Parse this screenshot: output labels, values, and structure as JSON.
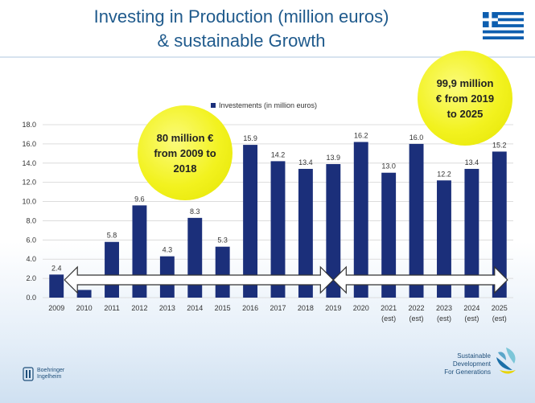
{
  "title": {
    "line1": "Investing in Production (million euros)",
    "line2": "& sustainable Growth"
  },
  "legend": "Investements (in million euros)",
  "bubbles": [
    {
      "lines": [
        "80 million €",
        "from 2009 to",
        "2018"
      ]
    },
    {
      "lines": [
        "99,9 million",
        "€ from 2019",
        "to 2025"
      ]
    }
  ],
  "colors": {
    "bar": "#1b2f7a",
    "bubble": "#f2f21f",
    "title": "#1f5a8c"
  },
  "logos": {
    "bottom_right": [
      "Sustainable",
      "Development",
      "For Generations"
    ],
    "bottom_left": [
      "Boehringer",
      "Ingelheim"
    ]
  },
  "chart_data": {
    "type": "bar",
    "categories": [
      "2009",
      "2010",
      "2011",
      "2012",
      "2013",
      "2014",
      "2015",
      "2016",
      "2017",
      "2018",
      "2019",
      "2020",
      "2021",
      "2022",
      "2023",
      "2024",
      "2025"
    ],
    "sublabels": [
      "",
      "",
      "",
      "",
      "",
      "",
      "",
      "",
      "",
      "",
      "",
      "",
      "(est)",
      "(est)",
      "(est)",
      "(est)",
      "(est)"
    ],
    "values": [
      2.4,
      0.8,
      5.8,
      9.6,
      4.3,
      8.3,
      5.3,
      15.9,
      14.2,
      13.4,
      13.9,
      16.2,
      13.0,
      16.0,
      12.2,
      13.4,
      15.2
    ],
    "value_labels": [
      "2.4",
      "",
      "5.8",
      "9.6",
      "4.3",
      "8.3",
      "5.3",
      "15.9",
      "14.2",
      "13.4",
      "13.9",
      "16.2",
      "13.0",
      "16.0",
      "12.2",
      "13.4",
      "15.2"
    ],
    "yticks": [
      "0.0",
      "2.0",
      "4.0",
      "6.0",
      "8.0",
      "10.0",
      "12.0",
      "14.0",
      "16.0",
      "18.0"
    ],
    "ylim": [
      0,
      18
    ],
    "grid": true,
    "legend_position": "top",
    "annotations": [
      {
        "type": "range-arrow",
        "from": "2009",
        "to": "2019"
      },
      {
        "type": "range-arrow",
        "from": "2019",
        "to": "2025"
      }
    ]
  }
}
